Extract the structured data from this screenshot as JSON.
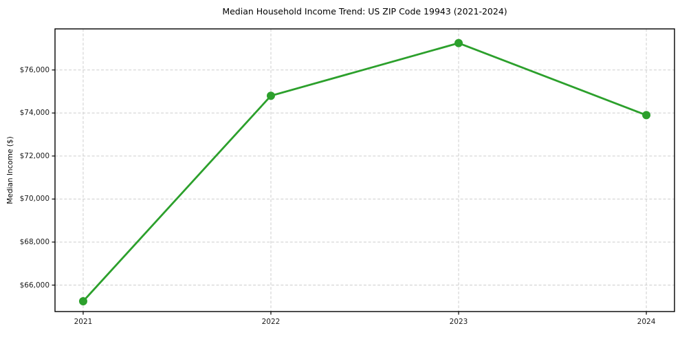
{
  "chart_data": {
    "type": "line",
    "title": "Median Household Income Trend: US ZIP Code 19943 (2021-2024)",
    "xlabel": "",
    "ylabel": "Median Income ($)",
    "x": [
      2021,
      2022,
      2023,
      2024
    ],
    "series": [
      {
        "name": "Median Household Income",
        "values": [
          65250,
          74800,
          77250,
          73900
        ]
      }
    ],
    "xticks": {
      "values": [
        2021,
        2022,
        2023,
        2024
      ],
      "labels": [
        "2021",
        "2022",
        "2023",
        "2024"
      ]
    },
    "yticks": {
      "values": [
        66000,
        68000,
        70000,
        72000,
        74000,
        76000
      ],
      "labels": [
        "$66,000",
        "$68,000",
        "$70,000",
        "$72,000",
        "$74,000",
        "$76,000"
      ]
    },
    "xlim": [
      2020.85,
      2024.15
    ],
    "ylim": [
      64770,
      77910
    ],
    "grid": true,
    "grid_style": "dashed",
    "legend": false,
    "colors": {
      "line": "#2ca02c",
      "marker": "#2ca02c",
      "grid": "#cdcdcd",
      "spine": "#000000",
      "background": "#ffffff",
      "text": "#1a1a1a"
    },
    "marker": "o",
    "marker_radius": 6,
    "line_width": 2.8
  }
}
